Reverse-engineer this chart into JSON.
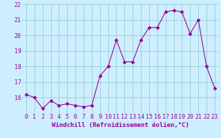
{
  "x": [
    0,
    1,
    2,
    3,
    4,
    5,
    6,
    7,
    8,
    9,
    10,
    11,
    12,
    13,
    14,
    15,
    16,
    17,
    18,
    19,
    20,
    21,
    22,
    23
  ],
  "y": [
    16.2,
    16.0,
    15.3,
    15.8,
    15.5,
    15.6,
    15.5,
    15.4,
    15.5,
    17.4,
    18.0,
    19.7,
    18.3,
    18.3,
    19.7,
    20.5,
    20.5,
    21.5,
    21.6,
    21.5,
    20.1,
    21.0,
    18.0,
    16.6
  ],
  "line_color": "#990099",
  "marker": "D",
  "marker_size": 2.5,
  "bg_color": "#cceeff",
  "grid_color": "#99cccc",
  "xlabel": "Windchill (Refroidissement éolien,°C)",
  "xlabel_color": "#990099",
  "xlabel_fontsize": 6.5,
  "tick_color": "#990099",
  "tick_fontsize": 6,
  "ylim": [
    15,
    22
  ],
  "yticks": [
    16,
    17,
    18,
    19,
    20,
    21,
    22
  ],
  "xlim": [
    -0.5,
    23.5
  ],
  "xticks": [
    0,
    1,
    2,
    3,
    4,
    5,
    6,
    7,
    8,
    9,
    10,
    11,
    12,
    13,
    14,
    15,
    16,
    17,
    18,
    19,
    20,
    21,
    22,
    23
  ]
}
